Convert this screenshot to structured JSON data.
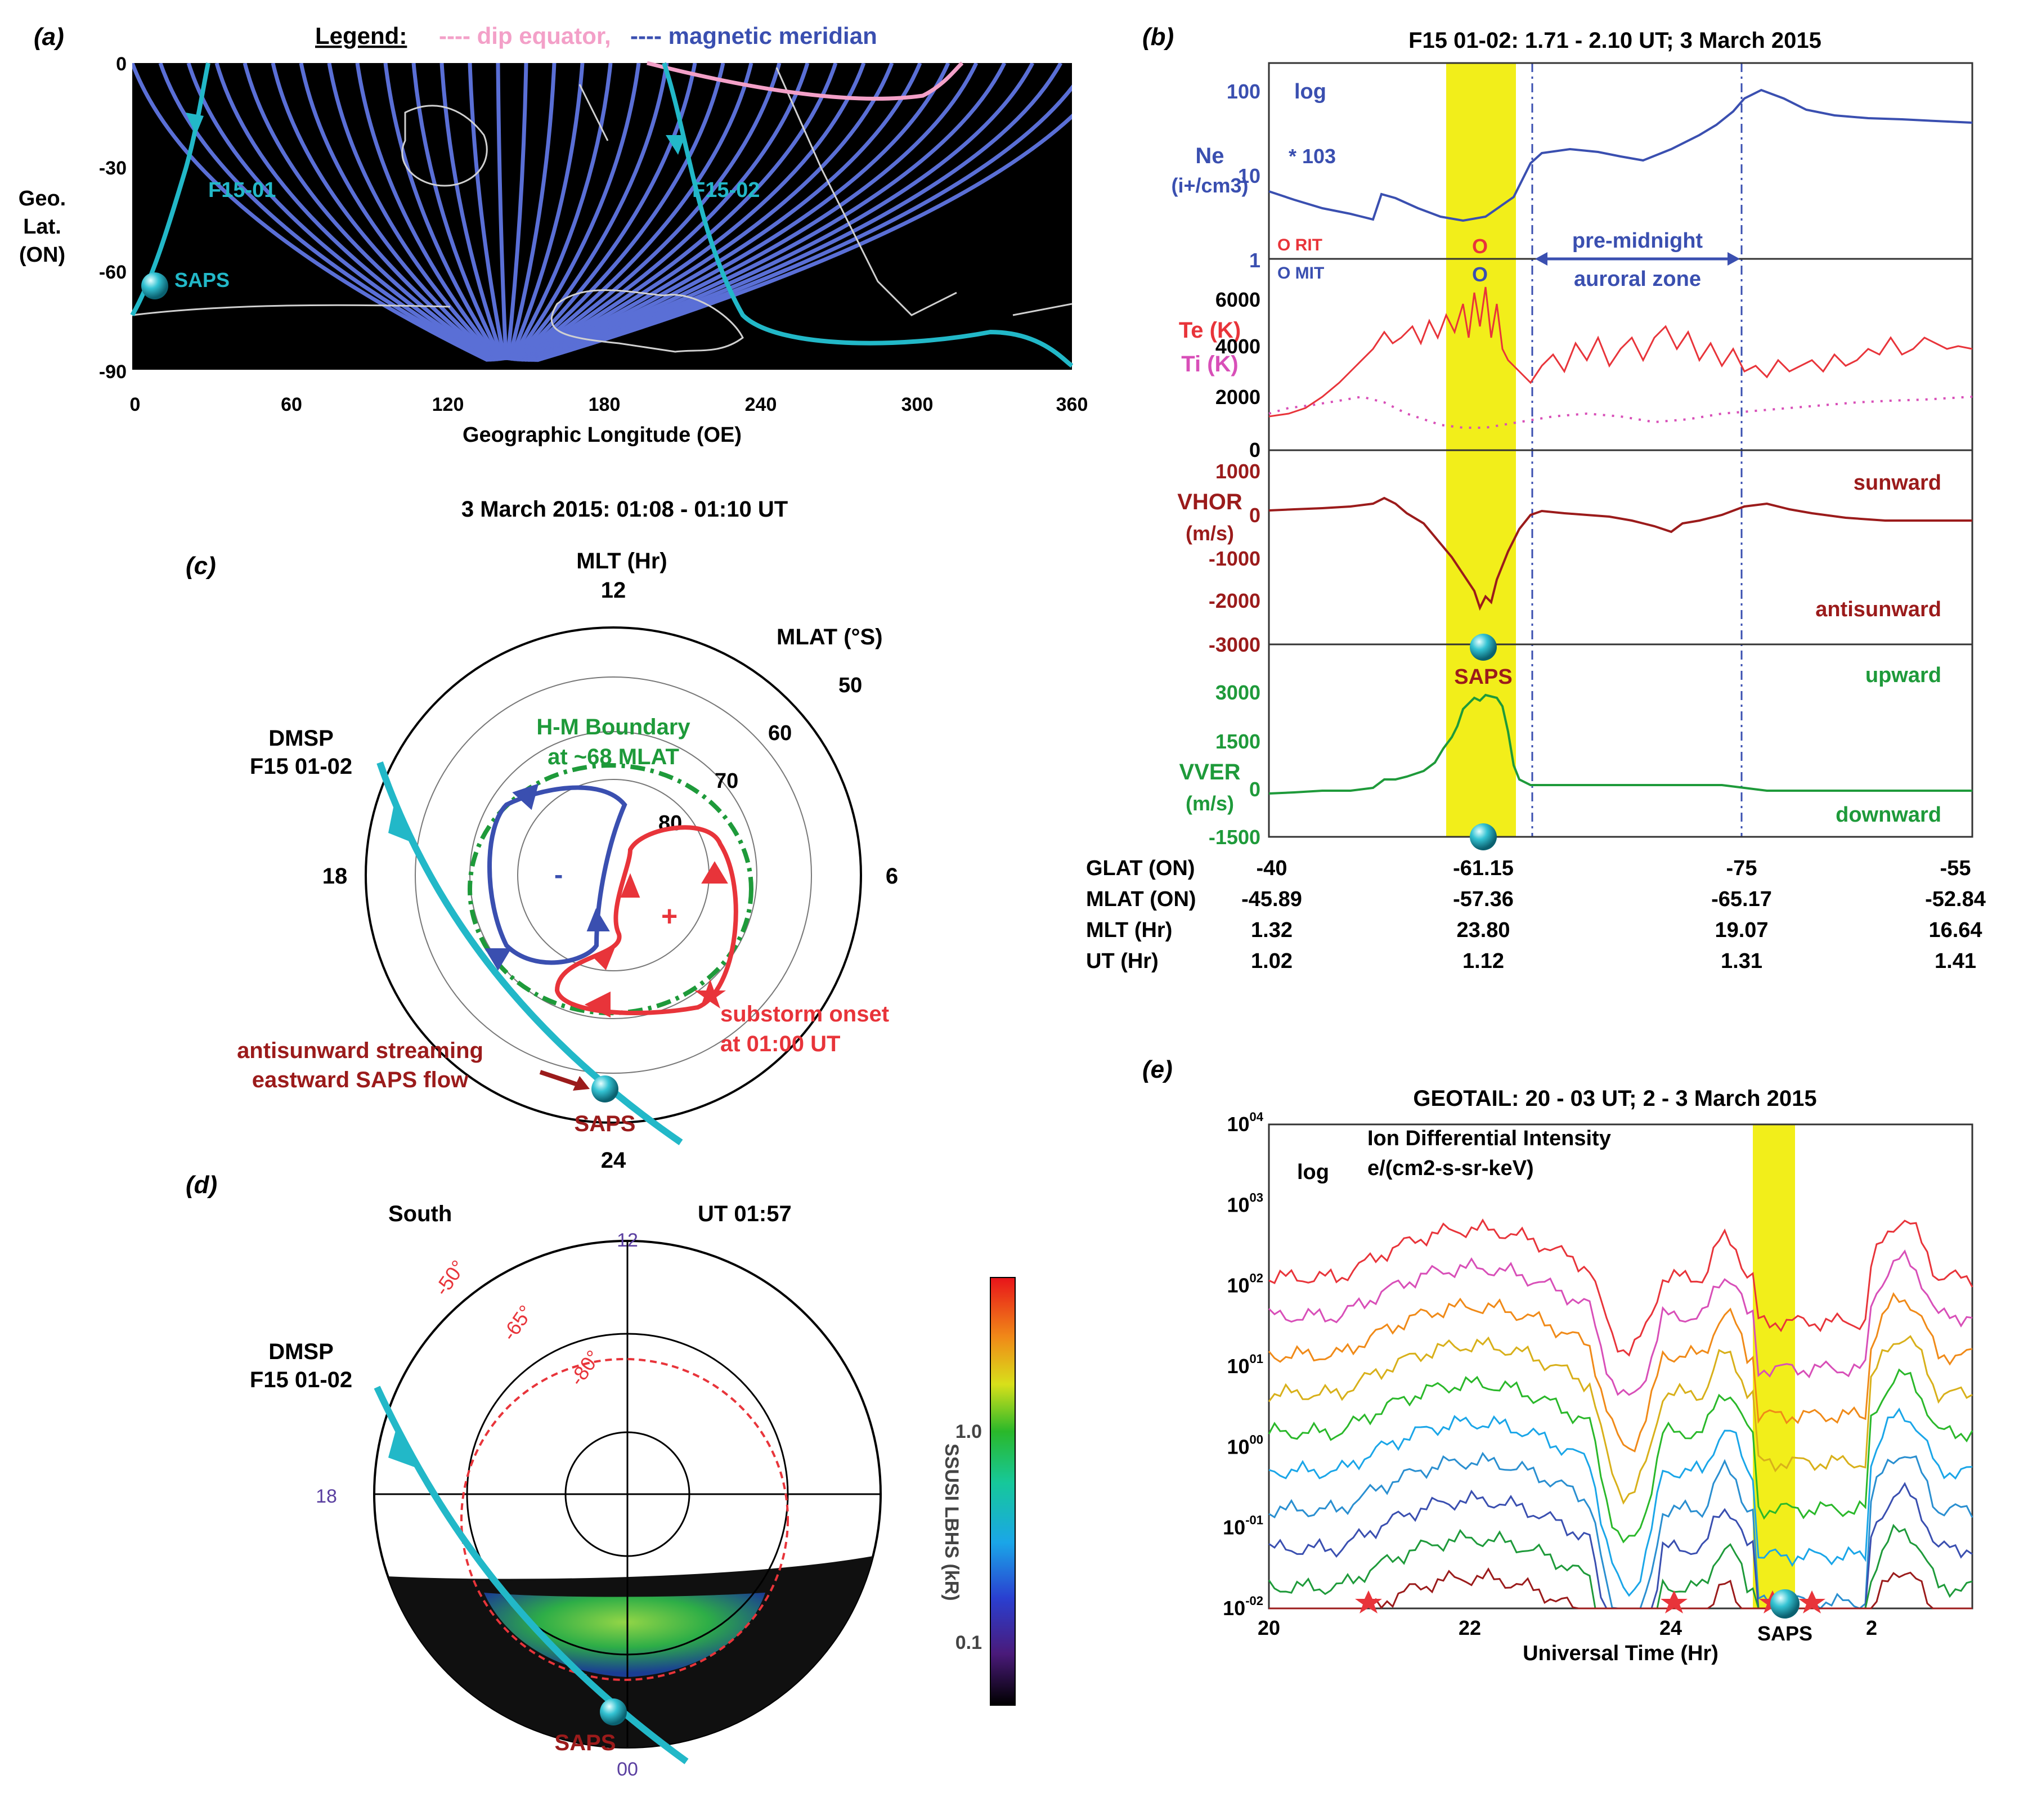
{
  "panel_labels": {
    "a": "(a)",
    "b": "(b)",
    "c": "(c)",
    "d": "(d)",
    "e": "(e)"
  },
  "colors": {
    "ne": "#3a4fb0",
    "te": "#e8343a",
    "ti": "#d84fb8",
    "vhor": "#9b1b1b",
    "vver": "#1e9a3a",
    "yellow": "#f2ee1a",
    "cyan": "#22b8c8",
    "meridian": "#5a6fd6",
    "dip": "#f3a0c8"
  },
  "panel_a": {
    "legend_title": "Legend:",
    "legend_dip": "---- dip equator,",
    "legend_meridian": "---- magnetic meridian",
    "ylabel_1": "Geo.",
    "ylabel_2": "Lat.",
    "ylabel_3": "(ON)",
    "xlabel": "Geographic Longitude (OE)",
    "yticks": [
      "0",
      "-30",
      "-60",
      "-90"
    ],
    "xticks": [
      "0",
      "60",
      "120",
      "180",
      "240",
      "300",
      "360"
    ],
    "track1": "F15-01",
    "track2": "F15-02",
    "saps": "SAPS"
  },
  "panel_b": {
    "title": "F15 01-02: 1.71 - 2.10 UT; 3 March 2015",
    "ne": {
      "label1": "Ne",
      "label2": "(i+/cm3)",
      "log": "log",
      "scale": "* 103",
      "yticks": [
        "100",
        "10",
        "1"
      ]
    },
    "temp": {
      "te": "Te (K)",
      "ti": "Ti (K)",
      "rit": "O RIT",
      "mit": "O MIT",
      "yticks": [
        "6000",
        "4000",
        "2000",
        "0"
      ]
    },
    "vhor": {
      "label1": "VHOR",
      "label2": "(m/s)",
      "up": "sunward",
      "down": "antisunward",
      "yticks": [
        "1000",
        "0",
        "-1000",
        "-2000",
        "-3000"
      ]
    },
    "vver": {
      "label1": "VVER",
      "label2": "(m/s)",
      "up": "upward",
      "down": "downward",
      "yticks": [
        "3000",
        "1500",
        "0",
        "-1500"
      ]
    },
    "aurora1": "pre-midnight",
    "aurora2": "auroral zone",
    "saps": "SAPS",
    "o_mark": "O",
    "table": {
      "rows": [
        {
          "name": "GLAT (ON)",
          "values": [
            "-40",
            "-61.15",
            "-75",
            "-55"
          ]
        },
        {
          "name": "MLAT (ON)",
          "values": [
            "-45.89",
            "-57.36",
            "-65.17",
            "-52.84"
          ]
        },
        {
          "name": "MLT (Hr)",
          "values": [
            "1.32",
            "23.80",
            "19.07",
            "16.64"
          ]
        },
        {
          "name": "UT (Hr)",
          "values": [
            "1.02",
            "1.12",
            "1.31",
            "1.41"
          ]
        }
      ]
    }
  },
  "panel_c": {
    "title": "3 March 2015: 01:08 - 01:10 UT",
    "mlt_label": "MLT (Hr)",
    "t12": "12",
    "t24": "24",
    "t18": "18",
    "t6": "6",
    "mlat_label": "MLAT (°S)",
    "r50": "50",
    "r60": "60",
    "r70": "70",
    "r80": "80",
    "dmsp1": "DMSP",
    "dmsp2": "F15 01-02",
    "hm1": "H-M Boundary",
    "hm2": "at ~68 MLAT",
    "sub1": "substorm onset",
    "sub2": "at 01:00 UT",
    "stream1": "antisunward streaming",
    "stream2": "eastward SAPS flow",
    "saps": "SAPS",
    "minus": "-",
    "plus": "+"
  },
  "panel_d": {
    "south": "South",
    "ut": "UT 01:57",
    "t12": "12",
    "t18": "18",
    "t00": "00",
    "c50": "-50°",
    "c65": "-65°",
    "c80": "-80°",
    "dmsp1": "DMSP",
    "dmsp2": "F15 01-02",
    "saps": "SAPS",
    "cbar_label": "SSUSI LBHS (kR)",
    "cbar_ticks": [
      "1.0",
      "0.1"
    ]
  },
  "panel_e": {
    "title": "GEOTAIL: 20 - 03 UT; 2 - 3 March 2015",
    "log": "log",
    "ylabel1": "Ion Differential Intensity",
    "ylabel2": "e/(cm2-s-sr-keV)",
    "xlabel": "Universal Time (Hr)",
    "xticks": [
      "20",
      "22",
      "24",
      "2"
    ],
    "saps": "SAPS"
  },
  "chart_data": [
    {
      "type": "line",
      "panel": "b",
      "title": "F15 01-02: 1.71 - 2.10 UT; 3 March 2015",
      "x_label": "UT (Hr)",
      "x_ticks": [
        1.02,
        1.12,
        1.31,
        1.41
      ],
      "series": [
        {
          "name": "Ne",
          "units": "10^3 i+/cm3 (log)",
          "values": [
            6,
            4,
            3,
            6,
            5,
            3,
            3,
            2.5,
            3,
            15,
            18,
            15,
            13,
            20,
            30,
            60,
            90,
            60,
            45,
            40
          ]
        },
        {
          "name": "Te (K)",
          "values": [
            1500,
            2000,
            3500,
            4500,
            4200,
            5000,
            5500,
            6500,
            4000,
            3500,
            3300,
            3800,
            3200,
            3400,
            3800,
            3200,
            3500,
            3800,
            4200,
            3800
          ]
        },
        {
          "name": "VHOR (m/s)",
          "values": [
            200,
            250,
            300,
            400,
            300,
            0,
            -800,
            -1500,
            -2300,
            0,
            0,
            -50,
            -200,
            -300,
            0,
            300,
            200,
            100,
            0,
            0
          ]
        },
        {
          "name": "VVER (m/s)",
          "values": [
            0,
            0,
            0,
            500,
            800,
            1500,
            2500,
            3000,
            1500,
            200,
            100,
            100,
            0,
            100,
            100,
            0,
            0,
            0,
            0,
            0
          ]
        }
      ]
    },
    {
      "type": "line",
      "panel": "e",
      "title": "GEOTAIL: 20 - 03 UT; 2 - 3 March 2015",
      "x_label": "Universal Time (Hr)",
      "y_label": "Ion Differential Intensity e/(cm2-s-sr-keV)",
      "y_scale": "log",
      "ylim": [
        "10^-2",
        "10^4"
      ],
      "xlim": [
        20,
        27
      ],
      "x_ticks": [
        20,
        22,
        24,
        2
      ]
    }
  ]
}
